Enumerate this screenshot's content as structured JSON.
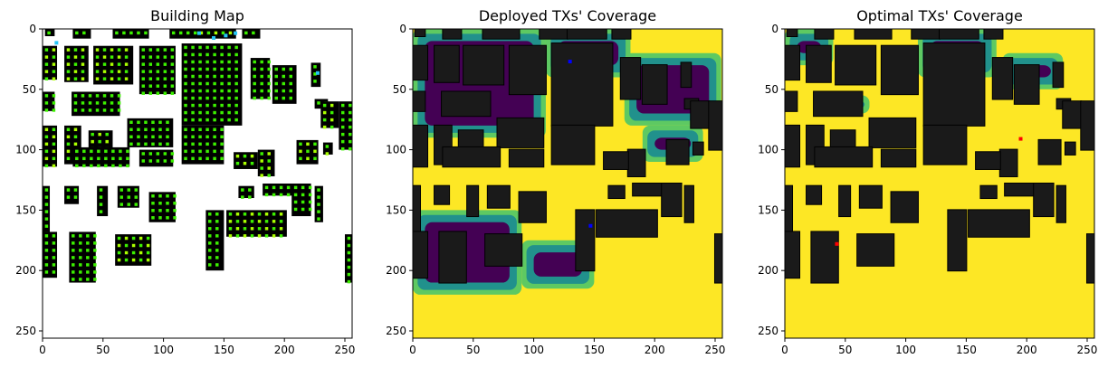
{
  "figure": {
    "panels": [
      {
        "title": "Building Map"
      },
      {
        "title": "Deployed TXs' Coverage"
      },
      {
        "title": "Optimal TXs' Coverage"
      }
    ]
  },
  "chart_data": [
    {
      "type": "heatmap",
      "title": "Building Map",
      "xlim": [
        0,
        255
      ],
      "ylim": [
        255,
        0
      ],
      "xticks": [
        0,
        50,
        100,
        150,
        200,
        250
      ],
      "yticks": [
        0,
        50,
        100,
        150,
        200,
        250
      ],
      "colors": {
        "background": "#ffffff",
        "building": "#000000",
        "window": "#3cf000",
        "window_alt": "#aaff00",
        "roof_marker": "#26c6f5"
      },
      "buildings": [
        [
          2,
          0,
          10,
          6
        ],
        [
          25,
          0,
          40,
          8
        ],
        [
          58,
          0,
          88,
          8
        ],
        [
          105,
          0,
          128,
          8
        ],
        [
          128,
          0,
          160,
          8
        ],
        [
          165,
          0,
          180,
          8
        ],
        [
          0,
          14,
          12,
          42
        ],
        [
          18,
          14,
          38,
          44
        ],
        [
          42,
          14,
          75,
          46
        ],
        [
          80,
          14,
          110,
          54
        ],
        [
          115,
          12,
          165,
          80
        ],
        [
          172,
          24,
          188,
          58
        ],
        [
          190,
          30,
          210,
          62
        ],
        [
          222,
          28,
          230,
          48
        ],
        [
          225,
          58,
          236,
          66
        ],
        [
          0,
          52,
          10,
          68
        ],
        [
          24,
          52,
          64,
          72
        ],
        [
          230,
          60,
          245,
          82
        ],
        [
          245,
          60,
          256,
          100
        ],
        [
          0,
          80,
          12,
          114
        ],
        [
          18,
          80,
          32,
          112
        ],
        [
          38,
          84,
          58,
          104
        ],
        [
          70,
          74,
          108,
          98
        ],
        [
          115,
          80,
          150,
          112
        ],
        [
          178,
          100,
          192,
          122
        ],
        [
          158,
          102,
          178,
          116
        ],
        [
          210,
          92,
          228,
          112
        ],
        [
          232,
          94,
          240,
          104
        ],
        [
          25,
          98,
          72,
          114
        ],
        [
          80,
          100,
          108,
          114
        ],
        [
          0,
          130,
          6,
          180
        ],
        [
          18,
          130,
          30,
          145
        ],
        [
          45,
          130,
          54,
          155
        ],
        [
          62,
          130,
          80,
          148
        ],
        [
          88,
          135,
          110,
          160
        ],
        [
          162,
          130,
          175,
          140
        ],
        [
          182,
          128,
          210,
          138
        ],
        [
          206,
          128,
          222,
          155
        ],
        [
          225,
          130,
          232,
          160
        ],
        [
          250,
          170,
          256,
          210
        ],
        [
          0,
          168,
          12,
          206
        ],
        [
          22,
          168,
          44,
          210
        ],
        [
          60,
          170,
          90,
          196
        ],
        [
          135,
          150,
          150,
          200
        ],
        [
          152,
          150,
          202,
          172
        ]
      ],
      "markers": [
        [
          10,
          10
        ],
        [
          128,
          2
        ],
        [
          140,
          6
        ],
        [
          150,
          4
        ],
        [
          158,
          2
        ],
        [
          226,
          35
        ]
      ]
    },
    {
      "type": "heatmap",
      "title": "Deployed TXs' Coverage",
      "xlim": [
        0,
        255
      ],
      "ylim": [
        255,
        0
      ],
      "xticks": [
        0,
        50,
        100,
        150,
        200,
        250
      ],
      "yticks": [
        0,
        50,
        100,
        150,
        200,
        250
      ],
      "colormap": [
        "#440154",
        "#21918c",
        "#5ec962",
        "#fde725"
      ],
      "building_color": "#1a1a1a",
      "tx_positions": [
        [
          130,
          27
        ],
        [
          147,
          163
        ]
      ],
      "tx_color": "#0000ff",
      "weak_regions": [
        [
          0,
          0,
          110,
          90
        ],
        [
          110,
          0,
          180,
          40
        ],
        [
          175,
          20,
          255,
          80
        ],
        [
          190,
          80,
          240,
          110
        ],
        [
          0,
          150,
          90,
          220
        ],
        [
          90,
          175,
          150,
          215
        ]
      ]
    },
    {
      "type": "heatmap",
      "title": "Optimal TXs' Coverage",
      "xlim": [
        0,
        255
      ],
      "ylim": [
        255,
        0
      ],
      "xticks": [
        0,
        50,
        100,
        150,
        200,
        250
      ],
      "yticks": [
        0,
        50,
        100,
        150,
        200,
        250
      ],
      "colormap": [
        "#440154",
        "#21918c",
        "#5ec962",
        "#fde725"
      ],
      "building_color": "#1a1a1a",
      "tx_positions": [
        [
          195,
          91
        ],
        [
          43,
          178
        ]
      ],
      "tx_color": "#ff0000",
      "weak_regions": [
        [
          0,
          0,
          40,
          30
        ],
        [
          110,
          0,
          175,
          40
        ],
        [
          180,
          20,
          230,
          50
        ],
        [
          50,
          55,
          70,
          70
        ]
      ]
    }
  ]
}
